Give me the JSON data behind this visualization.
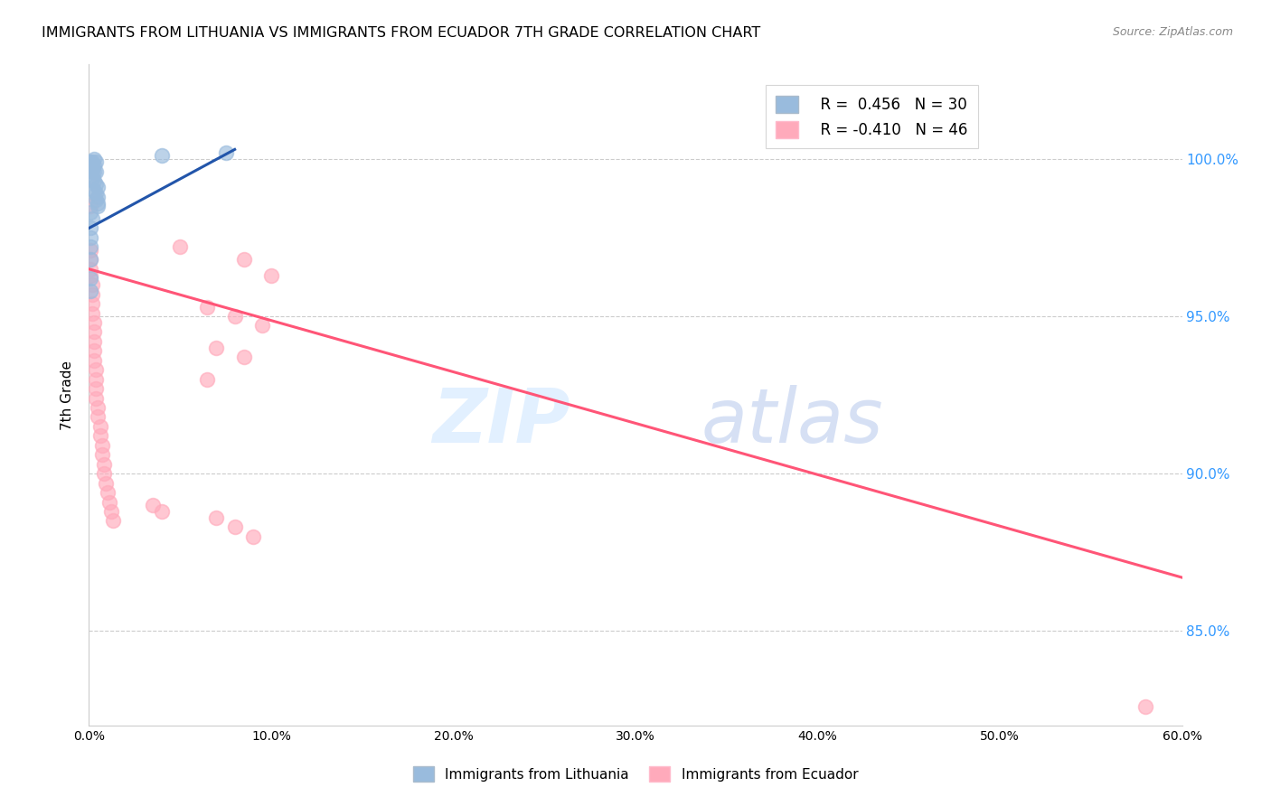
{
  "title": "IMMIGRANTS FROM LITHUANIA VS IMMIGRANTS FROM ECUADOR 7TH GRADE CORRELATION CHART",
  "source": "Source: ZipAtlas.com",
  "ylabel": "7th Grade",
  "ytick_labels": [
    "100.0%",
    "95.0%",
    "90.0%",
    "85.0%"
  ],
  "ytick_values": [
    1.0,
    0.95,
    0.9,
    0.85
  ],
  "xmin": 0.0,
  "xmax": 0.6,
  "ymin": 0.82,
  "ymax": 1.03,
  "blue_color": "#99BBDD",
  "pink_color": "#FFAABB",
  "blue_line_color": "#2255AA",
  "pink_line_color": "#FF5577",
  "blue_scatter": [
    [
      0.001,
      0.999
    ],
    [
      0.002,
      0.999
    ],
    [
      0.003,
      1.0
    ],
    [
      0.003,
      0.998
    ],
    [
      0.004,
      0.999
    ],
    [
      0.001,
      0.997
    ],
    [
      0.002,
      0.997
    ],
    [
      0.002,
      0.996
    ],
    [
      0.003,
      0.996
    ],
    [
      0.004,
      0.996
    ],
    [
      0.002,
      0.994
    ],
    [
      0.003,
      0.993
    ],
    [
      0.004,
      0.992
    ],
    [
      0.005,
      0.991
    ],
    [
      0.003,
      0.99
    ],
    [
      0.004,
      0.989
    ],
    [
      0.005,
      0.988
    ],
    [
      0.004,
      0.987
    ],
    [
      0.005,
      0.986
    ],
    [
      0.005,
      0.985
    ],
    [
      0.001,
      0.983
    ],
    [
      0.002,
      0.981
    ],
    [
      0.001,
      0.978
    ],
    [
      0.001,
      0.975
    ],
    [
      0.001,
      0.972
    ],
    [
      0.001,
      0.968
    ],
    [
      0.001,
      0.962
    ],
    [
      0.001,
      0.958
    ],
    [
      0.04,
      1.001
    ],
    [
      0.075,
      1.002
    ]
  ],
  "pink_scatter": [
    [
      0.001,
      0.971
    ],
    [
      0.001,
      0.968
    ],
    [
      0.001,
      0.965
    ],
    [
      0.001,
      0.963
    ],
    [
      0.002,
      0.96
    ],
    [
      0.002,
      0.957
    ],
    [
      0.002,
      0.954
    ],
    [
      0.002,
      0.951
    ],
    [
      0.003,
      0.948
    ],
    [
      0.003,
      0.945
    ],
    [
      0.003,
      0.942
    ],
    [
      0.003,
      0.939
    ],
    [
      0.003,
      0.936
    ],
    [
      0.004,
      0.933
    ],
    [
      0.004,
      0.93
    ],
    [
      0.004,
      0.927
    ],
    [
      0.004,
      0.924
    ],
    [
      0.005,
      0.921
    ],
    [
      0.005,
      0.918
    ],
    [
      0.006,
      0.915
    ],
    [
      0.006,
      0.912
    ],
    [
      0.007,
      0.909
    ],
    [
      0.007,
      0.906
    ],
    [
      0.008,
      0.903
    ],
    [
      0.008,
      0.9
    ],
    [
      0.009,
      0.897
    ],
    [
      0.01,
      0.894
    ],
    [
      0.011,
      0.891
    ],
    [
      0.012,
      0.888
    ],
    [
      0.013,
      0.885
    ],
    [
      0.001,
      0.985
    ],
    [
      0.05,
      0.972
    ],
    [
      0.085,
      0.968
    ],
    [
      0.1,
      0.963
    ],
    [
      0.065,
      0.953
    ],
    [
      0.08,
      0.95
    ],
    [
      0.095,
      0.947
    ],
    [
      0.07,
      0.94
    ],
    [
      0.085,
      0.937
    ],
    [
      0.065,
      0.93
    ],
    [
      0.035,
      0.89
    ],
    [
      0.04,
      0.888
    ],
    [
      0.07,
      0.886
    ],
    [
      0.08,
      0.883
    ],
    [
      0.09,
      0.88
    ],
    [
      0.58,
      0.826
    ]
  ],
  "blue_line_x": [
    0.0,
    0.08
  ],
  "blue_line_y": [
    0.978,
    1.003
  ],
  "pink_line_x": [
    0.0,
    0.6
  ],
  "pink_line_y": [
    0.965,
    0.867
  ]
}
